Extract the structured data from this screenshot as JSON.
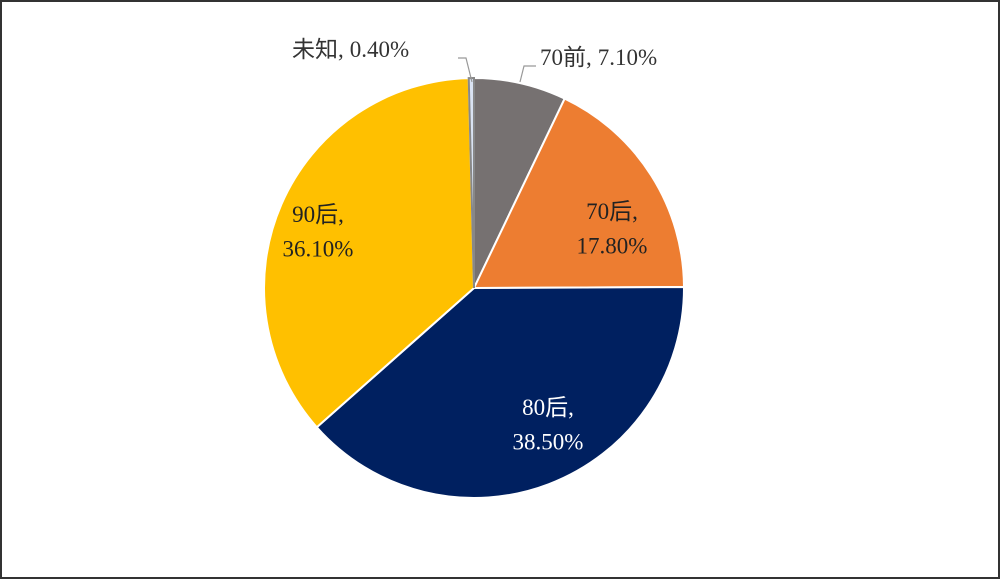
{
  "chart_data": {
    "type": "pie",
    "categories": [
      "70前",
      "70后",
      "80后",
      "90后",
      "未知"
    ],
    "values": [
      7.1,
      17.8,
      38.5,
      36.1,
      0.4
    ],
    "value_labels": [
      "7.10%",
      "17.80%",
      "38.50%",
      "36.10%",
      "0.40%"
    ],
    "label_separator": ",",
    "colors": [
      "#767171",
      "#ed7d31",
      "#002060",
      "#ffc000",
      "#dae3f3"
    ]
  }
}
